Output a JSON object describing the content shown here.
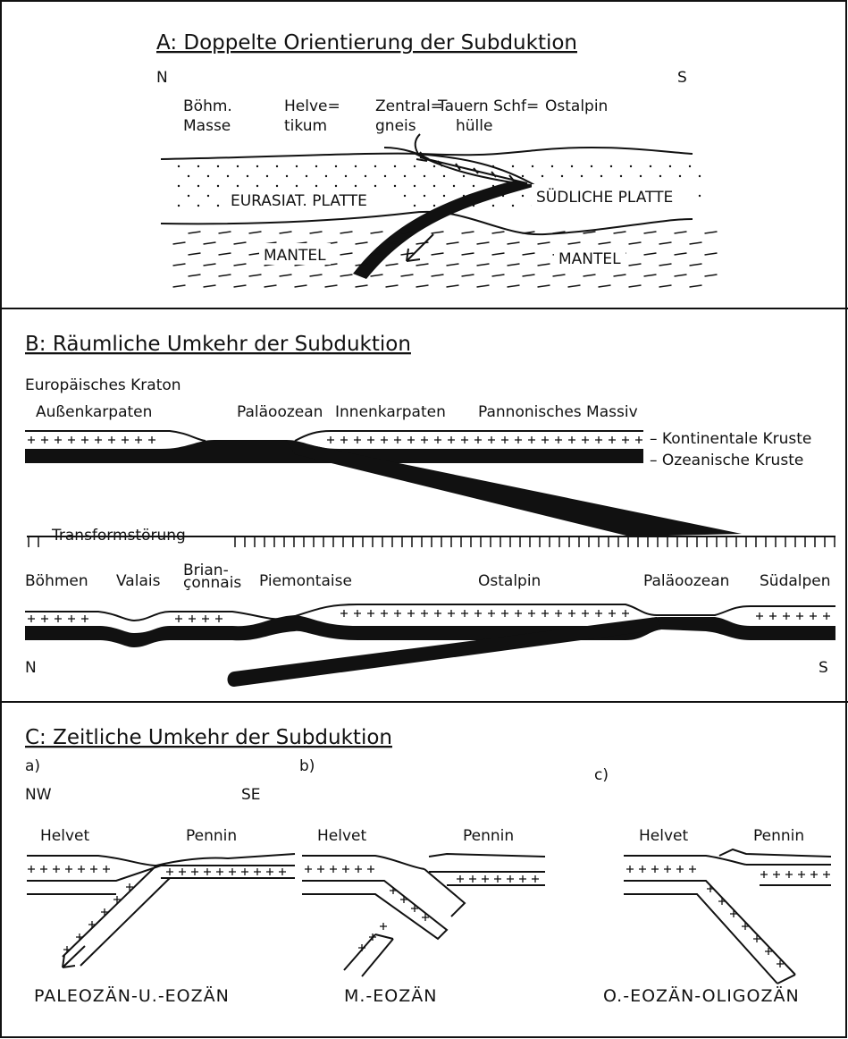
{
  "panel_a": {
    "title": "A: Doppelte Orientierung der Subduktion",
    "north": "N",
    "south": "S",
    "boehm_masse": [
      "Böhm.",
      "Masse"
    ],
    "helvetikum": [
      "Helve=",
      "tikum"
    ],
    "zentralgneis": [
      "Zentral=",
      "gneis"
    ],
    "tauern": [
      "Tauern Schf=",
      "hülle"
    ],
    "ostalpin": "Ostalpin",
    "eurasiat": "EURASIAT. PLATTE",
    "suedliche": "SÜDLICHE PLATTE",
    "mantel_left": "MANTEL",
    "mantel_right": "MANTEL"
  },
  "panel_b": {
    "title": "B: Räumliche Umkehr der Subduktion",
    "kraton": "Europäisches Kraton",
    "top_labels": [
      "Außenkarpaten",
      "Paläoozean",
      "Innenkarpaten",
      "Pannonisches Massiv"
    ],
    "kontinentale": "– Kontinentale Kruste",
    "ozeanische": "– Ozeanische Kruste",
    "transform": "Transformstörung",
    "bottom_labels": [
      "Böhmen",
      "Valais",
      "Piemontaise",
      "Ostalpin",
      "Paläoozean",
      "Südalpen"
    ],
    "brianconnais": [
      "Brian-",
      "çonnais"
    ],
    "north": "N",
    "south": "S"
  },
  "panel_c": {
    "title": "C: Zeitliche Umkehr der Subduktion",
    "stages": [
      {
        "tag": "a)",
        "left": "Helvet",
        "right": "Pennin",
        "caption": "PALEOZÄN-U.-EOZÄN"
      },
      {
        "tag": "b)",
        "left": "Helvet",
        "right": "Pennin",
        "caption": "M.-EOZÄN"
      },
      {
        "tag": "c)",
        "left": "Helvet",
        "right": "Pennin",
        "caption": "O.-EOZÄN-OLIGOZÄN"
      }
    ],
    "northwest": "NW",
    "southeast": "SE"
  }
}
